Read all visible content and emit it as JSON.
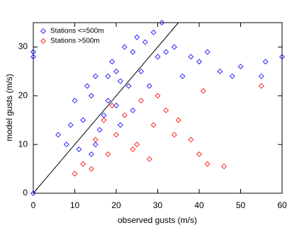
{
  "chart_data": {
    "type": "scatter",
    "xlabel": "observed gusts (m/s)",
    "ylabel": "model gusts (m/s)",
    "xlim": [
      0,
      60
    ],
    "ylim": [
      0,
      35
    ],
    "xticks": [
      0,
      10,
      20,
      30,
      40,
      50,
      60
    ],
    "yticks": [
      0,
      10,
      20,
      30
    ],
    "identity_line": true,
    "legend": "upper left",
    "series": [
      {
        "name": "Stations <=500m",
        "color": "#2a2aff",
        "x": [
          0,
          0,
          0,
          6,
          8,
          9,
          10,
          11,
          12,
          13,
          14,
          15,
          15,
          16,
          17,
          18,
          18,
          19,
          20,
          20,
          21,
          22,
          23,
          24,
          25,
          26,
          27,
          28,
          29,
          30,
          31,
          32,
          34,
          36,
          38,
          40,
          42,
          45,
          48,
          50,
          55,
          56,
          60,
          21,
          14,
          24
        ],
        "values": [
          0,
          28,
          29,
          12,
          10,
          14,
          19,
          9,
          15,
          22,
          20,
          10,
          24,
          13,
          16,
          19,
          24,
          27,
          18,
          25,
          23,
          30,
          22,
          29,
          32,
          25,
          31,
          22,
          33,
          28,
          35,
          29,
          30,
          24,
          28,
          27,
          29,
          25,
          24,
          26,
          24,
          27,
          28,
          14,
          8,
          17
        ]
      },
      {
        "name": "Stations >500m",
        "color": "#ff2a2a",
        "x": [
          10,
          12,
          14,
          15,
          17,
          18,
          19,
          20,
          22,
          24,
          25,
          26,
          28,
          29,
          30,
          32,
          34,
          35,
          38,
          40,
          41,
          42,
          46,
          55
        ],
        "values": [
          4,
          6,
          5,
          11,
          15,
          8,
          18,
          12,
          16,
          9,
          10,
          19,
          7,
          14,
          20,
          17,
          12,
          15,
          11,
          8,
          21,
          6,
          5.5,
          22
        ]
      }
    ]
  }
}
